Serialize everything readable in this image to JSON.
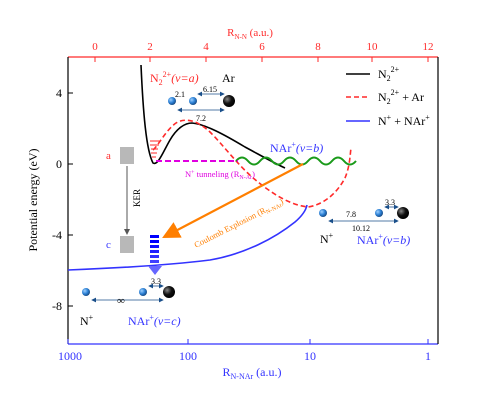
{
  "axes": {
    "ylabel": "Potential energy (eV)",
    "y_ticks": [
      "4",
      "0",
      "-4",
      "-8"
    ],
    "top_label": "R",
    "top_label_sub": "N-N",
    "top_label_unit": "(a.u.)",
    "top_ticks": [
      "0",
      "2",
      "4",
      "6",
      "8",
      "10",
      "12"
    ],
    "bottom_label": "R",
    "bottom_label_sub": "N-NAr",
    "bottom_label_unit": "(a.u.)",
    "bottom_ticks": [
      "1000",
      "100",
      "10",
      "1"
    ]
  },
  "legend": {
    "items": [
      {
        "base": "N",
        "sub": "2",
        "sup": "2+",
        "suffix": "",
        "color": "#000000",
        "dash": false
      },
      {
        "base": "N",
        "sub": "2",
        "sup": "2+",
        "suffix": " + Ar",
        "color": "#ff2a2a",
        "dash": true
      },
      {
        "base": "N",
        "sub": "",
        "sup": "+",
        "suffix": " + NAr",
        "sup2": "+",
        "color": "#3333ff",
        "dash": false
      }
    ]
  },
  "labels": {
    "n2_state": "N",
    "n2_state_sub": "2",
    "n2_state_sup": "2+",
    "n2_state_v": "(v=a)",
    "ar": "Ar",
    "dist_21": "2.1",
    "dist_615": "6.15",
    "dist_72": "7.2",
    "nar_b_top": "NAr",
    "nar_b_top_sup": "+",
    "nar_b_top_v": "(v=b)",
    "a_label": "a",
    "c_label": "c",
    "ker": "KER",
    "tunneling": "N",
    "tunneling_sup": "+",
    "tunneling_rest": " tunneling (R",
    "tunneling_sub": "N-Ar",
    "tunneling_end": ")",
    "coulomb": "Coulomb Explosion (R",
    "coulomb_sub": "N-NAr",
    "coulomb_end": ")",
    "dist_78": "7.8",
    "dist_33_right": "3.3",
    "dist_1012": "10.12",
    "n_plus_right": "N",
    "n_plus_right_sup": "+",
    "nar_b_right": "NAr",
    "nar_b_right_sup": "+",
    "nar_b_right_v": "(v=b)",
    "dist_33_bottom": "3.3",
    "infinity": "∞",
    "n_plus_bottom": "N",
    "n_plus_bottom_sup": "+",
    "nar_c": "NAr",
    "nar_c_sup": "+",
    "nar_c_v": "(v=c)"
  },
  "colors": {
    "black": "#000000",
    "red": "#ff2a2a",
    "blue": "#3333ff",
    "green": "#1a9a1a",
    "magenta": "#e000e0",
    "orange": "#ff7f00",
    "atom_blue": "#2a7fd4",
    "gray": "#b8b8b8"
  }
}
